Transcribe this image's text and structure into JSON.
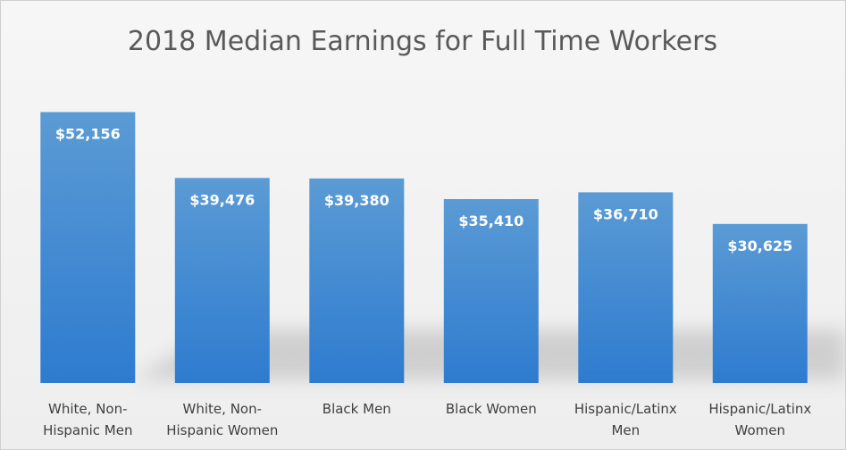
{
  "chart_data": {
    "type": "bar",
    "title": "2018 Median Earnings for Full Time Workers",
    "xlabel": "",
    "ylabel": "",
    "categories": [
      [
        "White, Non-",
        "Hispanic Men"
      ],
      [
        "White, Non-",
        "Hispanic Women"
      ],
      [
        "Black Men"
      ],
      [
        "Black Women"
      ],
      [
        "Hispanic/Latinx",
        "Men"
      ],
      [
        "Hispanic/Latinx",
        "Women"
      ]
    ],
    "values": [
      52156,
      39476,
      39380,
      35410,
      36710,
      30625
    ],
    "data_labels": [
      "$52,156",
      "$39,476",
      "$39,380",
      "$35,410",
      "$36,710",
      "$30,625"
    ],
    "ylim": [
      0,
      55000
    ],
    "grid": false,
    "legend": "none",
    "colors": {
      "bar_top": "#5b9bd5",
      "bar_bottom": "#2e7bcf",
      "title": "#595959",
      "tick_label": "#404040",
      "data_label": "#ffffff",
      "background": "#f2f2f2"
    }
  }
}
